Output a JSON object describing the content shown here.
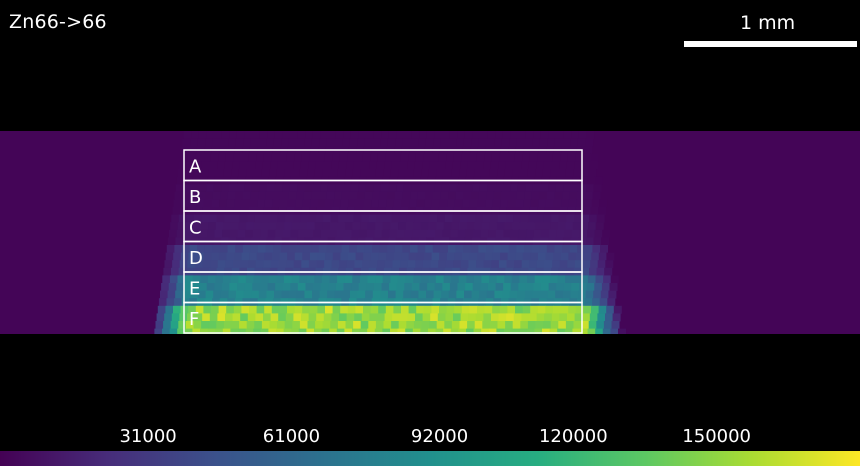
{
  "title": "Zn66->66",
  "scale_bar": {
    "label": "1 mm"
  },
  "chart_data": {
    "type": "heatmap",
    "title": "Zn66->66",
    "colormap": "viridis",
    "colorbar": {
      "min": 0,
      "max": 180000,
      "ticks": [
        {
          "value": 31000,
          "label": "31000"
        },
        {
          "value": 61000,
          "label": "61000"
        },
        {
          "value": 92000,
          "label": "92000"
        },
        {
          "value": 120000,
          "label": "120000"
        },
        {
          "value": 150000,
          "label": "150000"
        }
      ]
    },
    "regions": [
      {
        "label": "A",
        "intensity": 3000
      },
      {
        "label": "B",
        "intensity": 6000
      },
      {
        "label": "C",
        "intensity": 12000
      },
      {
        "label": "D",
        "intensity": 40000
      },
      {
        "label": "E",
        "intensity": 80000
      },
      {
        "label": "F",
        "intensity": 155000
      }
    ],
    "background_intensity": 2000
  }
}
